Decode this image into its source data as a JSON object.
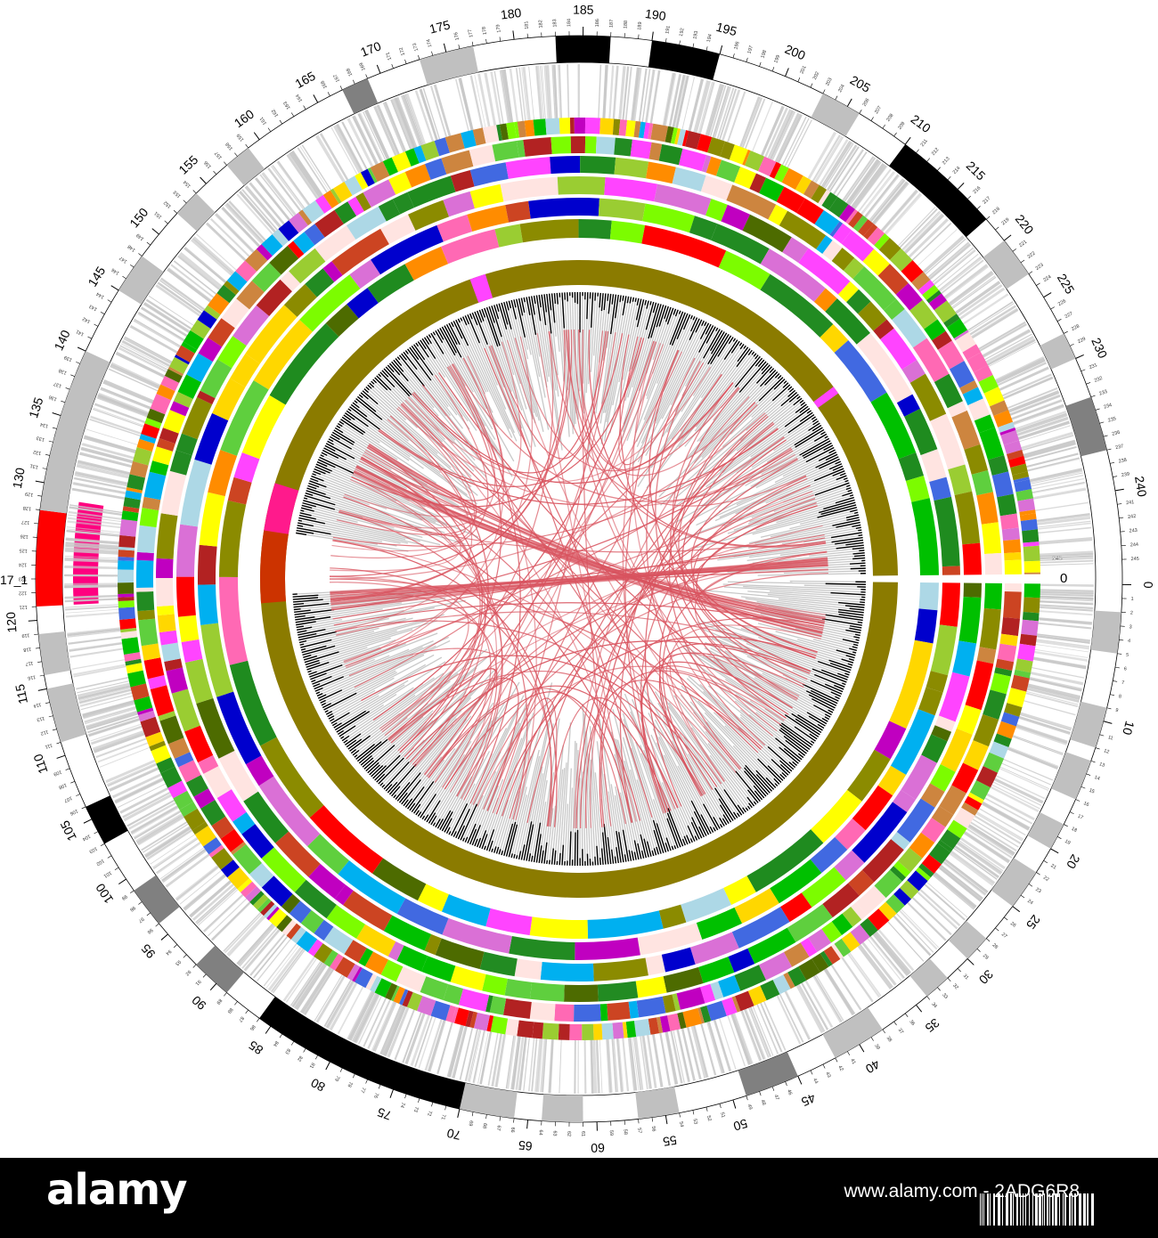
{
  "figure": {
    "contig_label": "17_1",
    "end_label": "245",
    "zero_label": "0",
    "major_labels": [
      "0",
      "10",
      "20",
      "25",
      "30",
      "35",
      "40",
      "45",
      "50",
      "55",
      "60",
      "65",
      "70",
      "75",
      "80",
      "85",
      "90",
      "95",
      "100",
      "105",
      "110",
      "115",
      "120",
      "130",
      "135",
      "140",
      "145",
      "150",
      "155",
      "160",
      "165",
      "170",
      "175",
      "180",
      "185",
      "190",
      "195",
      "200",
      "205",
      "210",
      "215",
      "220",
      "225",
      "230",
      "240"
    ],
    "colors": {
      "link": "#d9545f",
      "histogram": "#000000",
      "histogram_shadow": "#c8c8c8",
      "ideogram_gray": "#c0c0c0",
      "ideogram_dark": "#808080",
      "ideogram_black": "#000000",
      "highlight_red": "#ff0000",
      "highlight_pink": "#ff007f",
      "olive_band": "#8b7b00"
    },
    "palette": [
      "#5fcf3e",
      "#ff44ff",
      "#8b8b00",
      "#4d6b00",
      "#1f8b1f",
      "#ff0000",
      "#ff8c00",
      "#00b0f0",
      "#ffd700",
      "#c000c0",
      "#ffe4e1",
      "#4169e1",
      "#0000cd",
      "#00c000",
      "#cc4422",
      "#ffff00",
      "#9acd32",
      "#7cfc00",
      "#da70d6",
      "#ff69b4",
      "#b22222",
      "#cd853f",
      "#add8e6",
      "#228b22"
    ]
  },
  "footer": {
    "brand": "alamy",
    "image_id": "www.alamy.com - 2ADG6R8",
    "watermark": "alamy"
  }
}
